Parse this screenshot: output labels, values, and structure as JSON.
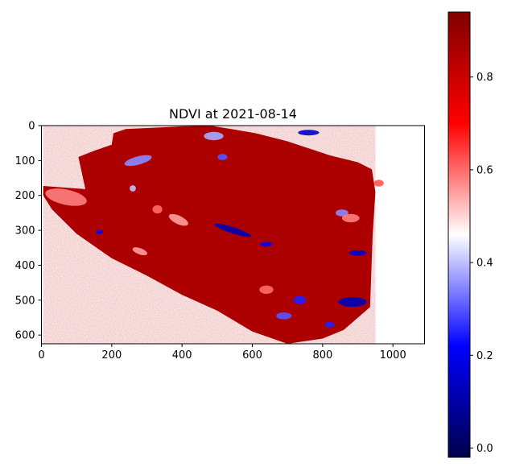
{
  "chart_data": {
    "type": "heatmap",
    "title": "NDVI at 2021-08-14",
    "xlabel": "",
    "ylabel": "",
    "xlim": [
      0,
      1090
    ],
    "ylim": [
      625,
      0
    ],
    "x_ticks": [
      0,
      200,
      400,
      600,
      800,
      1000
    ],
    "y_ticks": [
      0,
      100,
      200,
      300,
      400,
      500,
      600
    ],
    "colormap": "seismic",
    "colorbar": {
      "range": [
        -0.02,
        0.94
      ],
      "ticks": [
        0.0,
        0.2,
        0.4,
        0.6,
        0.8
      ],
      "tick_labels": [
        "0.0",
        "0.2",
        "0.4",
        "0.6",
        "0.8"
      ]
    },
    "field_outline": [
      [
        5,
        173
      ],
      [
        125,
        182
      ],
      [
        105,
        90
      ],
      [
        150,
        72
      ],
      [
        200,
        55
      ],
      [
        205,
        22
      ],
      [
        240,
        10
      ],
      [
        340,
        5
      ],
      [
        400,
        2
      ],
      [
        480,
        0
      ],
      [
        540,
        10
      ],
      [
        610,
        22
      ],
      [
        700,
        45
      ],
      [
        820,
        85
      ],
      [
        900,
        105
      ],
      [
        940,
        125
      ],
      [
        950,
        190
      ],
      [
        942,
        320
      ],
      [
        935,
        520
      ],
      [
        860,
        585
      ],
      [
        800,
        610
      ],
      [
        700,
        625
      ],
      [
        600,
        590
      ],
      [
        500,
        530
      ],
      [
        400,
        485
      ],
      [
        300,
        430
      ],
      [
        200,
        380
      ],
      [
        100,
        310
      ],
      [
        30,
        240
      ],
      [
        5,
        200
      ]
    ],
    "background_ndvi": 0.86,
    "features": [
      {
        "kind": "low",
        "x": 545,
        "y": 300,
        "rx": 55,
        "ry": 9,
        "angle": 18,
        "ndvi": 0.12
      },
      {
        "kind": "low",
        "x": 640,
        "y": 340,
        "rx": 18,
        "ry": 7,
        "angle": 0,
        "ndvi": 0.2
      },
      {
        "kind": "low",
        "x": 490,
        "y": 30,
        "rx": 28,
        "ry": 12,
        "angle": 0,
        "ndvi": 0.38
      },
      {
        "kind": "low",
        "x": 515,
        "y": 90,
        "rx": 14,
        "ry": 9,
        "angle": 0,
        "ndvi": 0.3
      },
      {
        "kind": "low",
        "x": 275,
        "y": 100,
        "rx": 40,
        "ry": 12,
        "angle": -15,
        "ndvi": 0.35
      },
      {
        "kind": "low",
        "x": 260,
        "y": 180,
        "rx": 9,
        "ry": 9,
        "angle": 0,
        "ndvi": 0.4
      },
      {
        "kind": "low",
        "x": 760,
        "y": 20,
        "rx": 30,
        "ry": 8,
        "angle": 0,
        "ndvi": 0.15
      },
      {
        "kind": "low",
        "x": 900,
        "y": 365,
        "rx": 25,
        "ry": 8,
        "angle": 0,
        "ndvi": 0.15
      },
      {
        "kind": "low",
        "x": 885,
        "y": 505,
        "rx": 40,
        "ry": 14,
        "angle": 0,
        "ndvi": 0.12
      },
      {
        "kind": "low",
        "x": 735,
        "y": 500,
        "rx": 18,
        "ry": 12,
        "angle": 0,
        "ndvi": 0.25
      },
      {
        "kind": "low",
        "x": 690,
        "y": 545,
        "rx": 22,
        "ry": 10,
        "angle": 0,
        "ndvi": 0.3
      },
      {
        "kind": "low",
        "x": 820,
        "y": 570,
        "rx": 14,
        "ry": 8,
        "angle": 0,
        "ndvi": 0.25
      },
      {
        "kind": "low",
        "x": 855,
        "y": 250,
        "rx": 18,
        "ry": 10,
        "angle": 0,
        "ndvi": 0.35
      },
      {
        "kind": "low",
        "x": 165,
        "y": 305,
        "rx": 10,
        "ry": 6,
        "angle": 0,
        "ndvi": 0.2
      },
      {
        "kind": "mid",
        "x": 70,
        "y": 205,
        "rx": 60,
        "ry": 22,
        "angle": 12,
        "ndvi": 0.58
      },
      {
        "kind": "mid",
        "x": 390,
        "y": 270,
        "rx": 30,
        "ry": 12,
        "angle": 25,
        "ndvi": 0.55
      },
      {
        "kind": "mid",
        "x": 330,
        "y": 240,
        "rx": 14,
        "ry": 12,
        "angle": 0,
        "ndvi": 0.6
      },
      {
        "kind": "mid",
        "x": 280,
        "y": 360,
        "rx": 22,
        "ry": 9,
        "angle": 20,
        "ndvi": 0.55
      },
      {
        "kind": "mid",
        "x": 880,
        "y": 265,
        "rx": 25,
        "ry": 12,
        "angle": 0,
        "ndvi": 0.58
      },
      {
        "kind": "mid",
        "x": 960,
        "y": 165,
        "rx": 14,
        "ry": 10,
        "angle": 0,
        "ndvi": 0.62
      },
      {
        "kind": "mid",
        "x": 640,
        "y": 470,
        "rx": 20,
        "ry": 12,
        "angle": 0,
        "ndvi": 0.6
      }
    ]
  }
}
